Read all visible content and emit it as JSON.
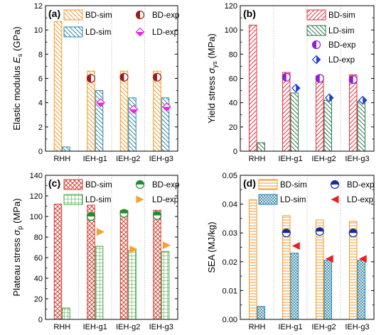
{
  "chart_data": [
    {
      "type": "bar",
      "panel_label": "(a)",
      "ylabel_main": "Elastic modulus ",
      "ylabel_symbol": "E",
      "ylabel_sub": "s",
      "ylabel_unit": " (GPa)",
      "ylim": [
        0,
        12
      ],
      "yticks": [
        0,
        2,
        4,
        6,
        8,
        10,
        12
      ],
      "categories": [
        "RHH",
        "IEH-g1",
        "IEH-g2",
        "IEH-g3"
      ],
      "series": [
        {
          "name": "BD-sim",
          "kind": "bar",
          "values": [
            10.7,
            6.6,
            6.6,
            6.6
          ],
          "color": "#f39a2b",
          "pattern": "diag-down"
        },
        {
          "name": "LD-sim",
          "kind": "bar",
          "values": [
            0.35,
            5.0,
            4.4,
            4.4
          ],
          "color": "#2e86a8",
          "pattern": "diag-down"
        },
        {
          "name": "BD-exp",
          "kind": "marker",
          "marker": "half-circle-left",
          "values": [
            null,
            6.0,
            6.1,
            6.1
          ],
          "color": "#9b1c1c"
        },
        {
          "name": "LD-exp",
          "kind": "marker",
          "marker": "diamond",
          "values": [
            null,
            4.0,
            3.45,
            3.65
          ],
          "color": "#ee22dd"
        }
      ],
      "legend": "top"
    },
    {
      "type": "bar",
      "panel_label": "(b)",
      "ylabel_main": "Yield stress ",
      "ylabel_symbol": "σ",
      "ylabel_sub": "ys",
      "ylabel_unit": " (MPa)",
      "ylim": [
        0,
        120
      ],
      "yticks": [
        0,
        20,
        40,
        60,
        80,
        100,
        120
      ],
      "categories": [
        "RHH",
        "IEH-g1",
        "IEH-g2",
        "IEH-g3"
      ],
      "series": [
        {
          "name": "BD-sim",
          "kind": "bar",
          "values": [
            104,
            65,
            62,
            63
          ],
          "color": "#e8313d",
          "pattern": "diag-up"
        },
        {
          "name": "LD-sim",
          "kind": "bar",
          "values": [
            7,
            48,
            42,
            41
          ],
          "color": "#2e7d4f",
          "pattern": "diag-down"
        },
        {
          "name": "BD-exp",
          "kind": "marker",
          "marker": "half-circle-left",
          "values": [
            null,
            61,
            60,
            59
          ],
          "color": "#8f1fd1"
        },
        {
          "name": "LD-exp",
          "kind": "marker",
          "marker": "half-diamond",
          "values": [
            null,
            52,
            44,
            42
          ],
          "color": "#1f3fd1"
        }
      ],
      "legend": "top-right"
    },
    {
      "type": "bar",
      "panel_label": "(c)",
      "ylabel_main": "Plateau stress ",
      "ylabel_symbol": "σ",
      "ylabel_sub": "p",
      "ylabel_unit": " (MPa)",
      "ylim": [
        0,
        140
      ],
      "yticks": [
        0,
        20,
        40,
        60,
        80,
        100,
        120,
        140
      ],
      "categories": [
        "RHH",
        "IEH-g1",
        "IEH-g2",
        "IEH-g3"
      ],
      "series": [
        {
          "name": "BD-sim",
          "kind": "bar",
          "values": [
            112,
            111,
            106,
            106
          ],
          "color": "#d0453a",
          "pattern": "cross"
        },
        {
          "name": "LD-sim",
          "kind": "bar",
          "values": [
            11,
            71,
            67,
            66
          ],
          "color": "#3f9f3f",
          "pattern": "grid"
        },
        {
          "name": "BD-exp",
          "kind": "marker",
          "marker": "half-circle-top",
          "values": [
            null,
            100,
            103,
            101
          ],
          "color": "#1c8f2a"
        },
        {
          "name": "LD-exp",
          "kind": "marker",
          "marker": "triangle-right",
          "values": [
            null,
            85,
            68,
            72
          ],
          "color": "#f5a030"
        }
      ],
      "legend": "top"
    },
    {
      "type": "bar",
      "panel_label": "(d)",
      "ylabel_main": "SEA (MJ/kg)",
      "ylabel_symbol": "",
      "ylabel_sub": "",
      "ylabel_unit": "",
      "ylim": [
        0,
        0.05
      ],
      "yticks": [
        0.0,
        0.01,
        0.02,
        0.03,
        0.04,
        0.05
      ],
      "ytick_labels": [
        "0.00",
        "0.01",
        "0.02",
        "0.03",
        "0.04",
        "0.05"
      ],
      "categories": [
        "RHH",
        "IEH-g1",
        "IEH-g2",
        "IEH-g3"
      ],
      "series": [
        {
          "name": "BD-sim",
          "kind": "bar",
          "values": [
            0.0415,
            0.036,
            0.0345,
            0.034
          ],
          "color": "#f39a2b",
          "pattern": "horiz"
        },
        {
          "name": "LD-sim",
          "kind": "bar",
          "values": [
            0.0045,
            0.023,
            0.0205,
            0.0205
          ],
          "color": "#2e86a8",
          "pattern": "fine-cross"
        },
        {
          "name": "BD-exp",
          "kind": "marker",
          "marker": "half-circle-top-dark",
          "values": [
            null,
            0.03,
            0.0305,
            0.03
          ],
          "color": "#1a2a9b"
        },
        {
          "name": "LD-exp",
          "kind": "marker",
          "marker": "triangle-left",
          "values": [
            null,
            0.0255,
            0.021,
            0.021
          ],
          "color": "#e62222"
        }
      ],
      "legend": "top"
    }
  ]
}
